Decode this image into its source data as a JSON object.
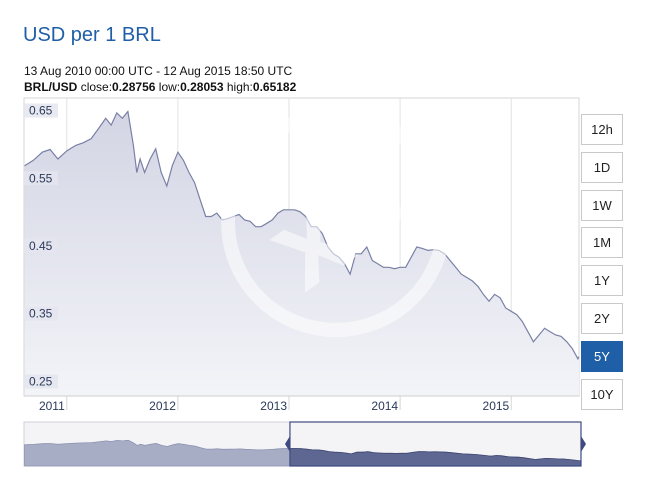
{
  "header": {
    "title": "USD per 1 BRL",
    "range": "13 Aug 2010 00:00 UTC - 12 Aug 2015 18:50 UTC",
    "pair": "BRL/USD",
    "close_label": "close:",
    "close": "0.28756",
    "low_label": "low:",
    "low": "0.28053",
    "high_label": "high:",
    "high": "0.65182"
  },
  "watermark": "xe",
  "range_buttons": [
    {
      "label": "12h",
      "active": false
    },
    {
      "label": "1D",
      "active": false
    },
    {
      "label": "1W",
      "active": false
    },
    {
      "label": "1M",
      "active": false
    },
    {
      "label": "1Y",
      "active": false
    },
    {
      "label": "2Y",
      "active": false
    },
    {
      "label": "5Y",
      "active": true
    },
    {
      "label": "10Y",
      "active": false
    }
  ],
  "colors": {
    "line": "#7a80a6",
    "area_top": "#d3d5e4",
    "area_bottom": "#f3f4f8",
    "navigator_fill": "#a8adc6",
    "navigator_selected": "#5d6791",
    "navigator_handle": "#3f4a80",
    "active_button": "#1f5fa8"
  },
  "chart_data": {
    "type": "area",
    "title": "USD per 1 BRL",
    "y_ticks": [
      "0.65",
      "0.55",
      "0.45",
      "0.35",
      "0.25"
    ],
    "x_ticks": [
      "2011",
      "2012",
      "2013",
      "2014",
      "2015"
    ],
    "xlim": [
      2010.615,
      2015.61
    ],
    "ylim": [
      0.23,
      0.67
    ],
    "grid": true,
    "series": [
      {
        "x": [
          2010.62,
          2010.7,
          2010.78,
          2010.85,
          2010.92,
          2011.0,
          2011.08,
          2011.15,
          2011.22,
          2011.3,
          2011.35,
          2011.4,
          2011.45,
          2011.5,
          2011.55,
          2011.6,
          2011.63,
          2011.66,
          2011.7,
          2011.75,
          2011.8,
          2011.85,
          2011.9,
          2011.95,
          2012.0,
          2012.05,
          2012.1,
          2012.15,
          2012.2,
          2012.25,
          2012.3,
          2012.35,
          2012.4,
          2012.45,
          2012.5,
          2012.55,
          2012.6,
          2012.65,
          2012.7,
          2012.75,
          2012.8,
          2012.85,
          2012.9,
          2012.95,
          2013.0,
          2013.05,
          2013.1,
          2013.15,
          2013.2,
          2013.25,
          2013.3,
          2013.35,
          2013.4,
          2013.45,
          2013.5,
          2013.55,
          2013.6,
          2013.65,
          2013.7,
          2013.75,
          2013.8,
          2013.85,
          2013.9,
          2013.95,
          2014.0,
          2014.05,
          2014.1,
          2014.15,
          2014.2,
          2014.25,
          2014.3,
          2014.35,
          2014.4,
          2014.45,
          2014.5,
          2014.55,
          2014.6,
          2014.65,
          2014.7,
          2014.75,
          2014.8,
          2014.85,
          2014.9,
          2014.95,
          2015.0,
          2015.05,
          2015.1,
          2015.15,
          2015.2,
          2015.25,
          2015.3,
          2015.35,
          2015.4,
          2015.45,
          2015.5,
          2015.55,
          2015.6,
          2015.61
        ],
        "values": [
          0.57,
          0.578,
          0.59,
          0.594,
          0.58,
          0.592,
          0.6,
          0.604,
          0.61,
          0.628,
          0.64,
          0.63,
          0.648,
          0.64,
          0.65,
          0.6,
          0.56,
          0.58,
          0.56,
          0.58,
          0.595,
          0.56,
          0.54,
          0.57,
          0.59,
          0.578,
          0.56,
          0.545,
          0.52,
          0.495,
          0.495,
          0.5,
          0.49,
          0.492,
          0.495,
          0.498,
          0.49,
          0.488,
          0.48,
          0.48,
          0.485,
          0.49,
          0.5,
          0.505,
          0.505,
          0.505,
          0.502,
          0.495,
          0.48,
          0.48,
          0.47,
          0.45,
          0.44,
          0.435,
          0.425,
          0.41,
          0.44,
          0.44,
          0.45,
          0.43,
          0.425,
          0.42,
          0.42,
          0.418,
          0.42,
          0.42,
          0.435,
          0.45,
          0.448,
          0.445,
          0.446,
          0.445,
          0.44,
          0.43,
          0.42,
          0.41,
          0.405,
          0.4,
          0.392,
          0.38,
          0.37,
          0.38,
          0.375,
          0.36,
          0.355,
          0.35,
          0.34,
          0.325,
          0.31,
          0.32,
          0.33,
          0.325,
          0.32,
          0.318,
          0.31,
          0.3,
          0.285,
          0.288
        ]
      }
    ],
    "navigator": {
      "selected_range": [
        2013.0,
        2015.61
      ]
    }
  }
}
